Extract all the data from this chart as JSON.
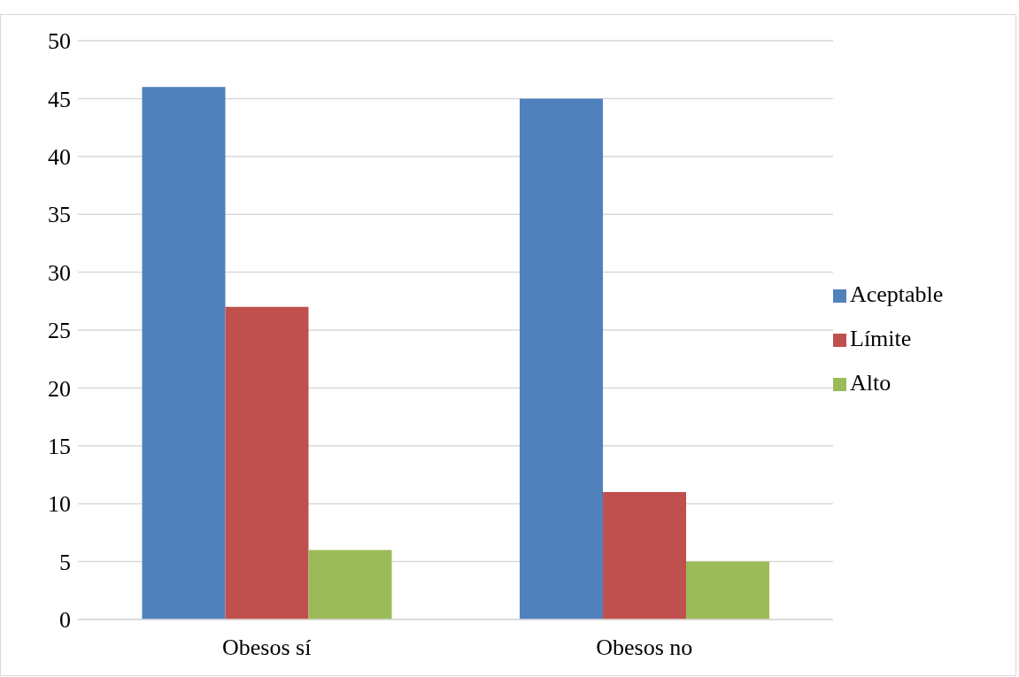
{
  "chart_data": {
    "type": "bar",
    "categories": [
      "Obesos sí",
      "Obesos no"
    ],
    "series": [
      {
        "name": "Aceptable",
        "color": "#4f81bd",
        "values": [
          46,
          45
        ]
      },
      {
        "name": "Límite",
        "color": "#c0504d",
        "values": [
          27,
          11
        ]
      },
      {
        "name": "Alto",
        "color": "#9bbb59",
        "values": [
          6,
          5
        ]
      }
    ],
    "ylim": [
      0,
      50
    ],
    "yticks": [
      0,
      5,
      10,
      15,
      20,
      25,
      30,
      35,
      40,
      45,
      50
    ],
    "grid": "y",
    "legend": "right"
  }
}
